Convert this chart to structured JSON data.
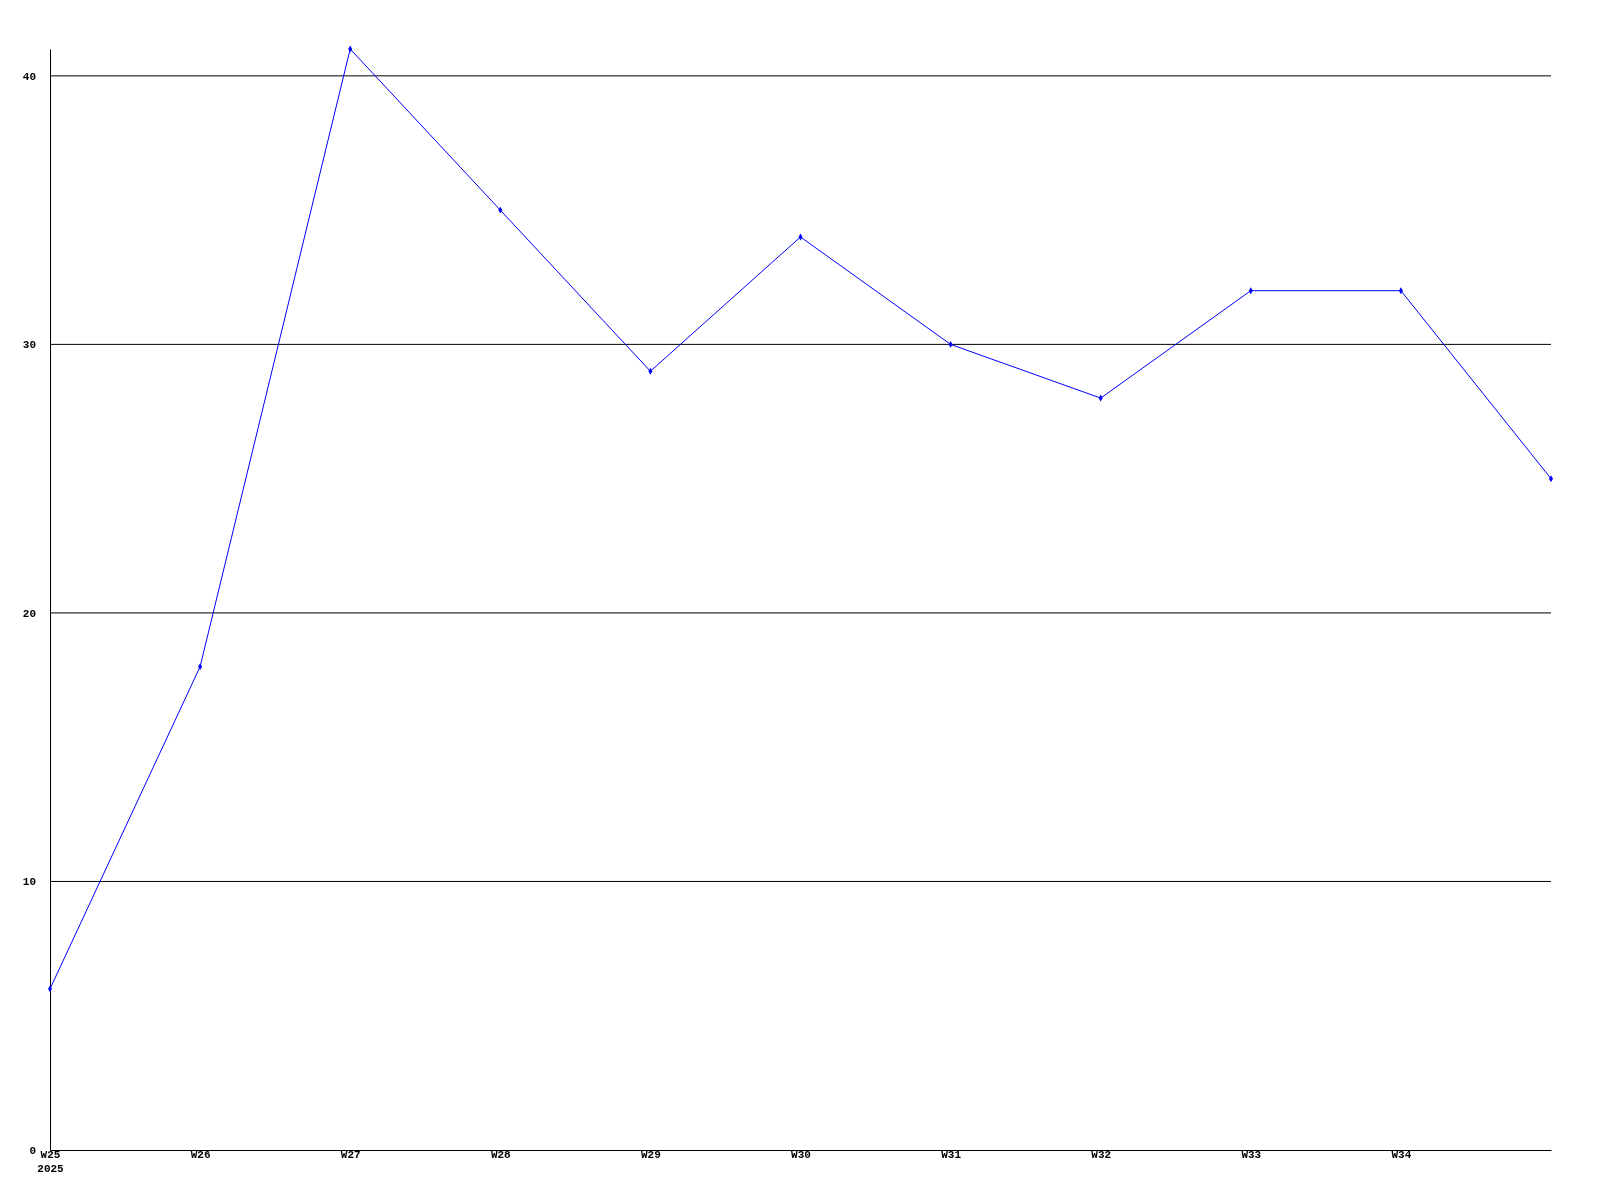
{
  "chart_data": {
    "type": "line",
    "categories": [
      "W25\n2025",
      "W26",
      "W27",
      "W28",
      "W29",
      "W30",
      "W31",
      "W32",
      "W33",
      "W34",
      null
    ],
    "series": [
      {
        "color": "#0000ff",
        "values": [
          6,
          18,
          41,
          35,
          29,
          34,
          30,
          28,
          32,
          32,
          25
        ]
      }
    ],
    "ylim": [
      0,
      41
    ],
    "yticks": [
      0,
      10,
      20,
      30,
      40
    ],
    "grid": "y",
    "marker": "diamond",
    "line_style": "solid"
  }
}
